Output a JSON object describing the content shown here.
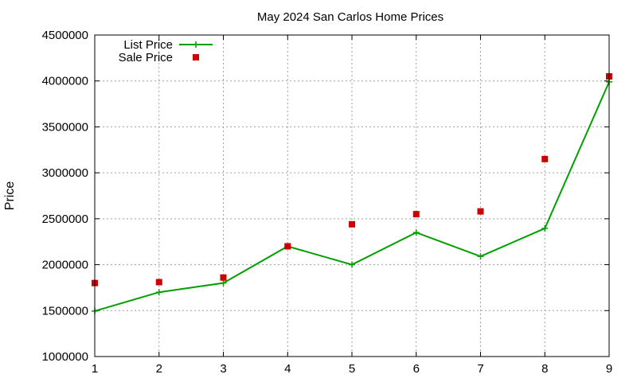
{
  "chart_data": {
    "type": "line",
    "title": "May 2024 San Carlos Home Prices",
    "xlabel": "",
    "ylabel": "Price",
    "x": [
      1,
      2,
      3,
      4,
      5,
      6,
      7,
      8,
      9
    ],
    "xlim": [
      1,
      9
    ],
    "ylim": [
      1000000,
      4500000
    ],
    "yticks": [
      1000000,
      1500000,
      2000000,
      2500000,
      3000000,
      3500000,
      4000000,
      4500000
    ],
    "xticks": [
      1,
      2,
      3,
      4,
      5,
      6,
      7,
      8,
      9
    ],
    "grid": true,
    "legend_position": "top-left",
    "series": [
      {
        "name": "List Price",
        "style": "line+plus",
        "color": "#00a000",
        "values": [
          1495000,
          1700000,
          1800000,
          2200000,
          2000000,
          2350000,
          2090000,
          2395000,
          3990000
        ]
      },
      {
        "name": "Sale Price",
        "style": "square-points",
        "color": "#cc0000",
        "values": [
          1800000,
          1810000,
          1860000,
          2200000,
          2440000,
          2550000,
          2580000,
          3150000,
          4050000
        ]
      }
    ]
  }
}
